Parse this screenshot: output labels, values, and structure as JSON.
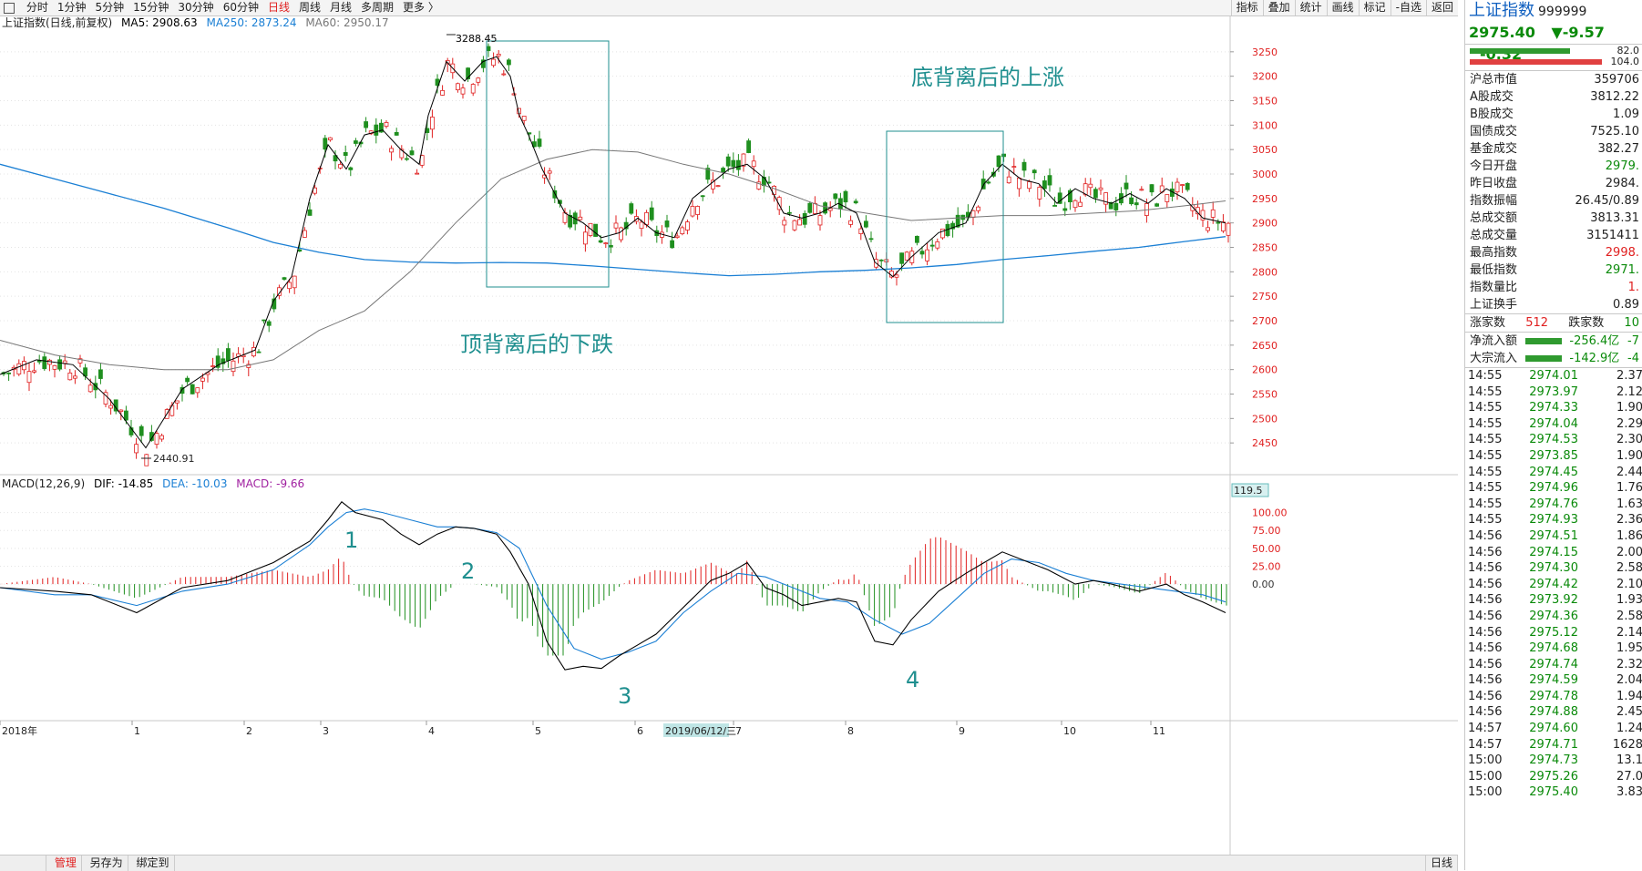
{
  "topbar": {
    "periods": [
      "分时",
      "1分钟",
      "5分钟",
      "15分钟",
      "30分钟",
      "60分钟",
      "日线",
      "周线",
      "月线",
      "多周期",
      "更多 〉"
    ],
    "active_index": 6,
    "tools": [
      "指标",
      "叠加",
      "统计",
      "画线",
      "标记",
      "-自选",
      "返回"
    ]
  },
  "main_legend": {
    "name": "上证指数(日线,前复权)",
    "ma5": "MA5: 2908.63",
    "ma250": "MA250: 2873.24",
    "ma60": "MA60: 2950.17"
  },
  "macd_legend": {
    "name": "MACD(12,26,9)",
    "dif": "DIF: -14.85",
    "dea": "DEA: -10.03",
    "macd": "MACD: -9.66"
  },
  "annotations": {
    "bottom_divergence": "底背离后的上涨",
    "top_divergence": "顶背离后的下跌",
    "labels": [
      "1",
      "2",
      "3",
      "4"
    ],
    "high_label": "3288.45",
    "low_label": "2440.91"
  },
  "bottom_bar": {
    "items": [
      "管理",
      "另存为",
      "绑定到"
    ],
    "right_label": "日线",
    "date_label": "2019/06/12/三"
  },
  "colors": {
    "up": "#e02020",
    "down": "#1f8f1f",
    "ma5": "#000000",
    "ma60": "#777777",
    "ma250": "#1a7fd4",
    "dea": "#1a7fd4",
    "dif": "#000000",
    "annotation": "#1f8f8f"
  },
  "chart_data": {
    "type": "line",
    "main": {
      "ylim": [
        2400,
        3300
      ],
      "yticks": [
        2450,
        2500,
        2550,
        2600,
        2650,
        2700,
        2750,
        2800,
        2850,
        2900,
        2950,
        3000,
        3050,
        3100,
        3150,
        3200,
        3250
      ],
      "xlabels": [
        "2018年",
        "1",
        "2",
        "3",
        "4",
        "5",
        "6",
        "7",
        "8",
        "9",
        "10",
        "11"
      ],
      "ma5_points": [
        [
          0,
          2590
        ],
        [
          40,
          2620
        ],
        [
          80,
          2610
        ],
        [
          120,
          2540
        ],
        [
          160,
          2440
        ],
        [
          200,
          2560
        ],
        [
          240,
          2610
        ],
        [
          280,
          2640
        ],
        [
          300,
          2740
        ],
        [
          320,
          2790
        ],
        [
          340,
          2950
        ],
        [
          360,
          3060
        ],
        [
          380,
          3010
        ],
        [
          400,
          3080
        ],
        [
          420,
          3090
        ],
        [
          440,
          3050
        ],
        [
          460,
          3020
        ],
        [
          470,
          3120
        ],
        [
          490,
          3230
        ],
        [
          510,
          3190
        ],
        [
          530,
          3230
        ],
        [
          545,
          3240
        ],
        [
          560,
          3200
        ],
        [
          570,
          3120
        ],
        [
          580,
          3080
        ],
        [
          595,
          3010
        ],
        [
          620,
          2920
        ],
        [
          640,
          2900
        ],
        [
          660,
          2870
        ],
        [
          680,
          2880
        ],
        [
          700,
          2910
        ],
        [
          720,
          2880
        ],
        [
          740,
          2870
        ],
        [
          760,
          2950
        ],
        [
          780,
          2980
        ],
        [
          800,
          3010
        ],
        [
          820,
          3020
        ],
        [
          840,
          2990
        ],
        [
          860,
          2920
        ],
        [
          880,
          2910
        ],
        [
          900,
          2920
        ],
        [
          920,
          2940
        ],
        [
          940,
          2920
        ],
        [
          960,
          2820
        ],
        [
          980,
          2790
        ],
        [
          1000,
          2830
        ],
        [
          1030,
          2880
        ],
        [
          1060,
          2900
        ],
        [
          1080,
          2980
        ],
        [
          1100,
          3020
        ],
        [
          1120,
          2990
        ],
        [
          1140,
          2980
        ],
        [
          1160,
          2940
        ],
        [
          1180,
          2970
        ],
        [
          1200,
          2950
        ],
        [
          1220,
          2940
        ],
        [
          1240,
          2960
        ],
        [
          1260,
          2940
        ],
        [
          1280,
          2970
        ],
        [
          1300,
          2950
        ],
        [
          1320,
          2910
        ],
        [
          1345,
          2900
        ]
      ],
      "ma60_points": [
        [
          0,
          2660
        ],
        [
          60,
          2630
        ],
        [
          120,
          2610
        ],
        [
          180,
          2600
        ],
        [
          250,
          2600
        ],
        [
          300,
          2620
        ],
        [
          350,
          2680
        ],
        [
          400,
          2720
        ],
        [
          450,
          2800
        ],
        [
          500,
          2900
        ],
        [
          550,
          2990
        ],
        [
          600,
          3030
        ],
        [
          650,
          3050
        ],
        [
          700,
          3045
        ],
        [
          750,
          3020
        ],
        [
          800,
          3000
        ],
        [
          850,
          2970
        ],
        [
          900,
          2935
        ],
        [
          950,
          2920
        ],
        [
          1000,
          2905
        ],
        [
          1050,
          2910
        ],
        [
          1100,
          2915
        ],
        [
          1150,
          2915
        ],
        [
          1200,
          2920
        ],
        [
          1250,
          2925
        ],
        [
          1300,
          2935
        ],
        [
          1345,
          2945
        ]
      ],
      "ma250_points": [
        [
          0,
          3020
        ],
        [
          60,
          2990
        ],
        [
          120,
          2960
        ],
        [
          180,
          2930
        ],
        [
          250,
          2890
        ],
        [
          300,
          2860
        ],
        [
          350,
          2840
        ],
        [
          400,
          2825
        ],
        [
          450,
          2820
        ],
        [
          500,
          2818
        ],
        [
          550,
          2819
        ],
        [
          600,
          2818
        ],
        [
          650,
          2812
        ],
        [
          700,
          2805
        ],
        [
          750,
          2798
        ],
        [
          800,
          2792
        ],
        [
          850,
          2795
        ],
        [
          900,
          2800
        ],
        [
          950,
          2803
        ],
        [
          1000,
          2808
        ],
        [
          1050,
          2815
        ],
        [
          1100,
          2825
        ],
        [
          1150,
          2833
        ],
        [
          1200,
          2842
        ],
        [
          1250,
          2850
        ],
        [
          1300,
          2862
        ],
        [
          1345,
          2872
        ]
      ]
    },
    "macd": {
      "ylim": [
        -200,
        125
      ],
      "yticks": [
        0,
        25,
        50,
        75,
        100
      ],
      "top_label": "119.5",
      "dif_points": [
        [
          0,
          -5
        ],
        [
          60,
          -10
        ],
        [
          100,
          -15
        ],
        [
          150,
          -40
        ],
        [
          200,
          -5
        ],
        [
          250,
          5
        ],
        [
          300,
          30
        ],
        [
          340,
          60
        ],
        [
          360,
          90
        ],
        [
          375,
          115
        ],
        [
          390,
          100
        ],
        [
          420,
          90
        ],
        [
          440,
          70
        ],
        [
          460,
          55
        ],
        [
          480,
          70
        ],
        [
          500,
          80
        ],
        [
          520,
          78
        ],
        [
          545,
          70
        ],
        [
          560,
          45
        ],
        [
          580,
          0
        ],
        [
          600,
          -80
        ],
        [
          620,
          -120
        ],
        [
          640,
          -115
        ],
        [
          660,
          -118
        ],
        [
          680,
          -100
        ],
        [
          700,
          -85
        ],
        [
          720,
          -70
        ],
        [
          740,
          -45
        ],
        [
          760,
          -20
        ],
        [
          780,
          5
        ],
        [
          800,
          15
        ],
        [
          820,
          30
        ],
        [
          840,
          -5
        ],
        [
          860,
          -15
        ],
        [
          880,
          -30
        ],
        [
          900,
          -25
        ],
        [
          920,
          -20
        ],
        [
          940,
          -25
        ],
        [
          960,
          -80
        ],
        [
          980,
          -85
        ],
        [
          1000,
          -50
        ],
        [
          1030,
          -10
        ],
        [
          1060,
          15
        ],
        [
          1080,
          30
        ],
        [
          1100,
          45
        ],
        [
          1120,
          35
        ],
        [
          1150,
          20
        ],
        [
          1180,
          0
        ],
        [
          1200,
          5
        ],
        [
          1220,
          0
        ],
        [
          1250,
          -10
        ],
        [
          1280,
          0
        ],
        [
          1300,
          -15
        ],
        [
          1320,
          -25
        ],
        [
          1345,
          -40
        ]
      ],
      "dea_points": [
        [
          0,
          -5
        ],
        [
          60,
          -15
        ],
        [
          100,
          -15
        ],
        [
          150,
          -30
        ],
        [
          200,
          -10
        ],
        [
          250,
          0
        ],
        [
          300,
          20
        ],
        [
          340,
          55
        ],
        [
          360,
          80
        ],
        [
          380,
          100
        ],
        [
          400,
          105
        ],
        [
          420,
          100
        ],
        [
          450,
          90
        ],
        [
          480,
          80
        ],
        [
          500,
          80
        ],
        [
          520,
          78
        ],
        [
          545,
          72
        ],
        [
          570,
          50
        ],
        [
          600,
          -30
        ],
        [
          630,
          -90
        ],
        [
          660,
          -105
        ],
        [
          690,
          -95
        ],
        [
          720,
          -80
        ],
        [
          750,
          -40
        ],
        [
          780,
          -10
        ],
        [
          810,
          15
        ],
        [
          840,
          10
        ],
        [
          870,
          -5
        ],
        [
          900,
          -20
        ],
        [
          930,
          -25
        ],
        [
          960,
          -50
        ],
        [
          990,
          -70
        ],
        [
          1020,
          -55
        ],
        [
          1050,
          -20
        ],
        [
          1080,
          15
        ],
        [
          1110,
          35
        ],
        [
          1140,
          30
        ],
        [
          1170,
          15
        ],
        [
          1200,
          5
        ],
        [
          1230,
          0
        ],
        [
          1260,
          -5
        ],
        [
          1290,
          -10
        ],
        [
          1320,
          -15
        ],
        [
          1345,
          -25
        ]
      ]
    }
  },
  "right_panel": {
    "title": "上证指数",
    "code": "999999",
    "price": "2975.40",
    "change": "▼-9.57",
    "change_pct": "-0.32",
    "bar_val1": "82.0",
    "bar_val2": "104.0",
    "stats": [
      {
        "k": "沪总市值",
        "v": "359706",
        "c": ""
      },
      {
        "k": "A股成交",
        "v": "3812.22",
        "c": ""
      },
      {
        "k": "B股成交",
        "v": "1.09",
        "c": ""
      },
      {
        "k": "国债成交",
        "v": "7525.10",
        "c": ""
      },
      {
        "k": "基金成交",
        "v": "382.27",
        "c": ""
      },
      {
        "k": "今日开盘",
        "v": "2979.",
        "c": "green"
      },
      {
        "k": "昨日收盘",
        "v": "2984.",
        "c": ""
      },
      {
        "k": "指数振幅",
        "v": "26.45/0.89",
        "c": ""
      },
      {
        "k": "总成交额",
        "v": "3813.31",
        "c": ""
      },
      {
        "k": "总成交量",
        "v": "3151411",
        "c": ""
      },
      {
        "k": "最高指数",
        "v": "2998.",
        "c": "red"
      },
      {
        "k": "最低指数",
        "v": "2971.",
        "c": "green"
      },
      {
        "k": "指数量比",
        "v": "1.",
        "c": "red"
      },
      {
        "k": "上证换手",
        "v": "0.89",
        "c": ""
      }
    ],
    "up_count_label": "涨家数",
    "up_count": "512",
    "down_count_label": "跌家数",
    "down_count": "10",
    "flow": [
      {
        "k": "净流入额",
        "v": "-256.4亿",
        "v2": "-7"
      },
      {
        "k": "大宗流入",
        "v": "-142.9亿",
        "v2": "-4"
      }
    ],
    "ticks": [
      [
        "14:55",
        "2974.01",
        "2.37"
      ],
      [
        "14:55",
        "2973.97",
        "2.12"
      ],
      [
        "14:55",
        "2974.33",
        "1.90"
      ],
      [
        "14:55",
        "2974.04",
        "2.29"
      ],
      [
        "14:55",
        "2974.53",
        "2.30"
      ],
      [
        "14:55",
        "2973.85",
        "1.90"
      ],
      [
        "14:55",
        "2974.45",
        "2.44"
      ],
      [
        "14:55",
        "2974.96",
        "1.76"
      ],
      [
        "14:55",
        "2974.76",
        "1.63"
      ],
      [
        "14:55",
        "2974.93",
        "2.36"
      ],
      [
        "14:56",
        "2974.51",
        "1.86"
      ],
      [
        "14:56",
        "2974.15",
        "2.00"
      ],
      [
        "14:56",
        "2974.30",
        "2.58"
      ],
      [
        "14:56",
        "2974.42",
        "2.10"
      ],
      [
        "14:56",
        "2973.92",
        "1.93"
      ],
      [
        "14:56",
        "2974.36",
        "2.58"
      ],
      [
        "14:56",
        "2975.12",
        "2.14"
      ],
      [
        "14:56",
        "2974.68",
        "1.95"
      ],
      [
        "14:56",
        "2974.74",
        "2.32"
      ],
      [
        "14:56",
        "2974.59",
        "2.04"
      ],
      [
        "14:56",
        "2974.78",
        "1.94"
      ],
      [
        "14:56",
        "2974.88",
        "2.45"
      ],
      [
        "14:57",
        "2974.60",
        "1.24"
      ],
      [
        "14:57",
        "2974.71",
        "1628"
      ],
      [
        "15:00",
        "2974.73",
        "13.1"
      ],
      [
        "15:00",
        "2975.26",
        "27.0"
      ],
      [
        "15:00",
        "2975.40",
        "3.83"
      ]
    ]
  }
}
